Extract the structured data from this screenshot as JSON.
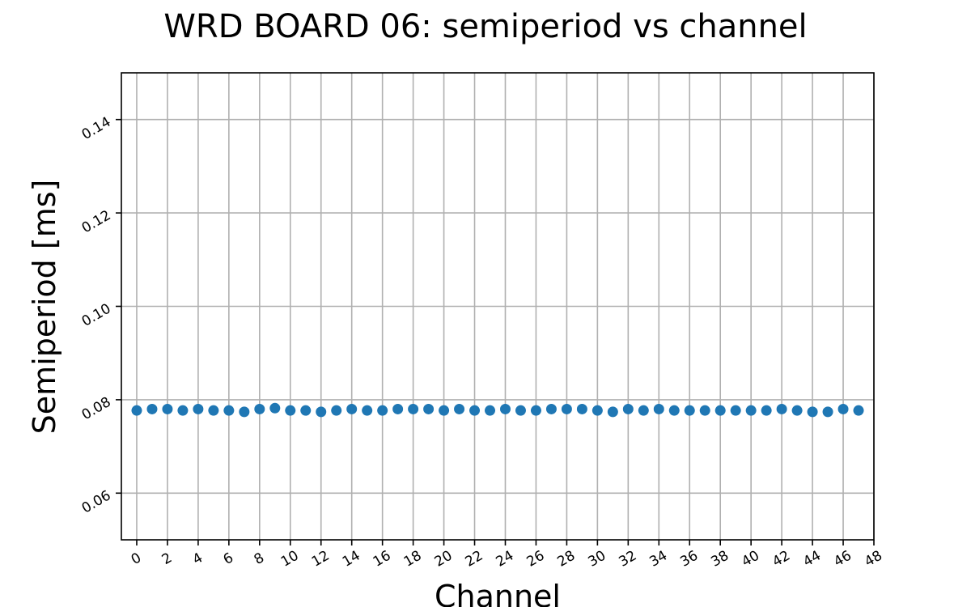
{
  "chart_data": {
    "type": "scatter",
    "title": "WRD BOARD 06: semiperiod vs channel",
    "xlabel": "Channel",
    "ylabel": "Semiperiod [ms]",
    "xlim": [
      -1,
      48
    ],
    "ylim": [
      0.05,
      0.15
    ],
    "xticks": [
      0,
      2,
      4,
      6,
      8,
      10,
      12,
      14,
      16,
      18,
      20,
      22,
      24,
      26,
      28,
      30,
      32,
      34,
      36,
      38,
      40,
      42,
      44,
      46,
      48
    ],
    "yticks": [
      0.06,
      0.08,
      0.1,
      0.12,
      0.14
    ],
    "ytick_labels": [
      "0.06",
      "0.08",
      "0.10",
      "0.12",
      "0.14"
    ],
    "grid": true,
    "marker_color": "#1f77b4",
    "series": [
      {
        "x": [
          0,
          1,
          2,
          3,
          4,
          5,
          6,
          7,
          8,
          9,
          10,
          11,
          12,
          13,
          14,
          15,
          16,
          17,
          18,
          19,
          20,
          21,
          22,
          23,
          24,
          25,
          26,
          27,
          28,
          29,
          30,
          31,
          32,
          33,
          34,
          35,
          36,
          37,
          38,
          39,
          40,
          41,
          42,
          43,
          44,
          45,
          46,
          47
        ],
        "y": [
          0.0777,
          0.078,
          0.078,
          0.0777,
          0.078,
          0.0777,
          0.0777,
          0.0774,
          0.078,
          0.0782,
          0.0777,
          0.0777,
          0.0774,
          0.0777,
          0.078,
          0.0777,
          0.0777,
          0.078,
          0.078,
          0.078,
          0.0777,
          0.078,
          0.0777,
          0.0777,
          0.078,
          0.0777,
          0.0777,
          0.078,
          0.078,
          0.078,
          0.0777,
          0.0774,
          0.078,
          0.0777,
          0.078,
          0.0777,
          0.0777,
          0.0777,
          0.0777,
          0.0777,
          0.0777,
          0.0777,
          0.078,
          0.0777,
          0.0774,
          0.0774,
          0.078,
          0.0777
        ]
      }
    ]
  }
}
